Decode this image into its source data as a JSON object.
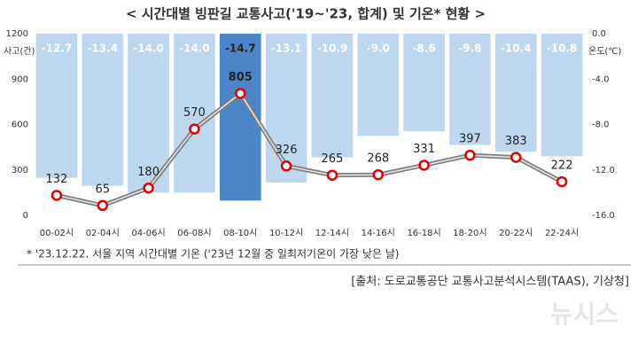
{
  "chart_data": {
    "type": "combo",
    "title": "< 시간대별 빙판길 교통사고('19~'23, 합계) 및 기온* 현황 >",
    "y_label": "사고(건)",
    "y2_label": "온도(℃)",
    "categories": [
      "00-02시",
      "02-04시",
      "04-06시",
      "06-08시",
      "08-10시",
      "10-12시",
      "12-14시",
      "14-16시",
      "16-18시",
      "18-20시",
      "20-22시",
      "22-24시"
    ],
    "ylim": [
      0,
      1200
    ],
    "yticks": [
      0,
      300,
      600,
      900,
      1200
    ],
    "y2lim": [
      -16,
      0
    ],
    "y2ticks": [
      {
        "value": 0,
        "label": "0.0"
      },
      {
        "value": -4,
        "label": "-4.0"
      },
      {
        "value": -8,
        "label": "-8.0"
      },
      {
        "value": -12,
        "label": "-12.0"
      },
      {
        "value": -16,
        "label": "-16.0"
      }
    ],
    "series": [
      {
        "type": "bar",
        "axis": "y2",
        "colors": [
          "#bdd7ee",
          "#bdd7ee",
          "#bdd7ee",
          "#bdd7ee",
          "#4a86c8",
          "#bdd7ee",
          "#bdd7ee",
          "#bdd7ee",
          "#bdd7ee",
          "#bdd7ee",
          "#bdd7ee",
          "#bdd7ee"
        ],
        "values": [
          -12.7,
          -13.4,
          -14,
          -14,
          -14.7,
          -13.1,
          -10.9,
          -9,
          -8.6,
          -9.8,
          -10.4,
          -10.8
        ],
        "value_labels": [
          "-12.7",
          "-13.4",
          "-14.0",
          "-14.0",
          "-14.7",
          "-13.1",
          "-10.9",
          "-9.0",
          "-8.6",
          "-9.8",
          "-10.4",
          "-10.8"
        ]
      },
      {
        "type": "line",
        "color": "#808080",
        "marker_color": "#e00000",
        "values": [
          132,
          65,
          180,
          570,
          805,
          326,
          265,
          268,
          331,
          397,
          383,
          222
        ]
      }
    ],
    "footnote": "*  '23.12.22. 서울 지역 시간대별 기온 ('23년 12월 중 일최저기온이 가장 낮은 날)",
    "source": "[출처: 도로교통공단 교통사고분석시스템(TAAS), 기상청]",
    "watermark": "뉴시스"
  }
}
